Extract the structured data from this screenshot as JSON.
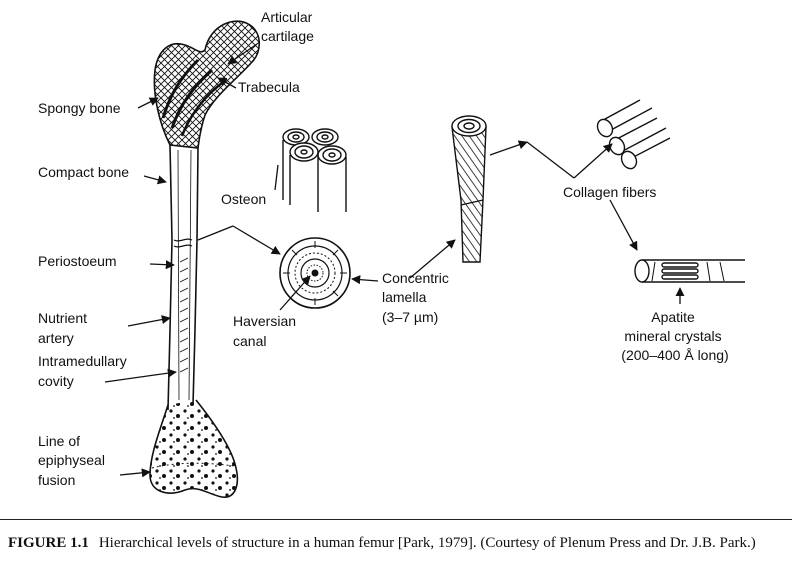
{
  "labels": {
    "articular_cartilage": [
      "Articular",
      "cartilage"
    ],
    "trabecula": "Trabecula",
    "spongy_bone": "Spongy bone",
    "compact_bone": "Compact bone",
    "osteon": "Osteon",
    "periosteum": "Periostoeum",
    "nutrient_artery": [
      "Nutrient",
      "artery"
    ],
    "intramedullary_cavity": [
      "Intramedullary",
      "covity"
    ],
    "haversian_canal": [
      "Haversian",
      "canal"
    ],
    "concentric_lamella": [
      "Concentric",
      "lamella",
      "(3–7 µm)"
    ],
    "collagen_fibers": "Collagen fibers",
    "apatite": [
      "Apatite",
      "mineral crystals",
      "(200–400 Å long)"
    ],
    "epiphyseal_line": [
      "Line of",
      "epiphyseal",
      "fusion"
    ]
  },
  "caption": {
    "label": "FIGURE 1.1",
    "text": "Hierarchical levels of structure in a human femur [Park, 1979]. (Courtesy of Plenum Press and Dr. J.B. Park.)"
  }
}
